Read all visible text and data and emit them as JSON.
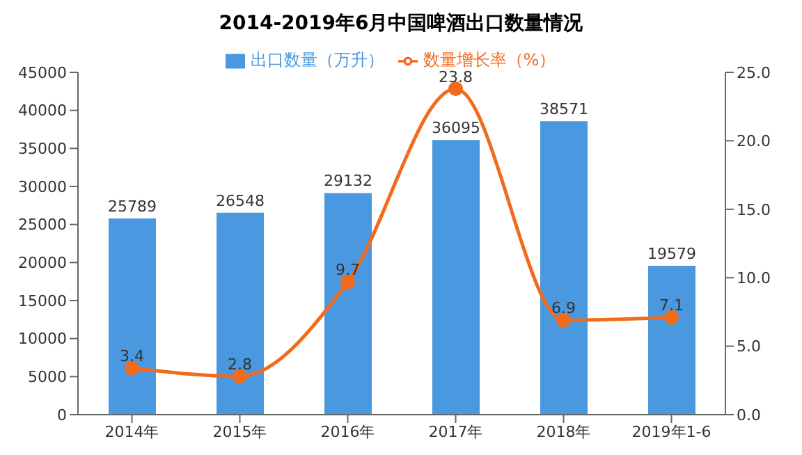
{
  "chart_data": {
    "type": "bar",
    "title": "2014-2019年6月中国啤酒出口数量情况",
    "categories": [
      "2014年",
      "2015年",
      "2016年",
      "2017年",
      "2018年",
      "2019年1-6"
    ],
    "series": [
      {
        "name": "出口数量（万升）",
        "color": "#4a98e0",
        "values": [
          25789,
          26548,
          29132,
          36095,
          38571,
          19579
        ]
      },
      {
        "name": "数量增长率（%）",
        "type": "line",
        "axis": "y2",
        "color": "#f26b1d",
        "values": [
          3.4,
          2.8,
          9.7,
          23.8,
          6.9,
          7.1
        ]
      }
    ],
    "ylim": [
      0,
      45000
    ],
    "yticks": [
      0,
      5000,
      10000,
      15000,
      20000,
      25000,
      30000,
      35000,
      40000,
      45000
    ],
    "y2lim": [
      0,
      25
    ],
    "y2ticks": [
      {
        "value": 0,
        "label": "0.0"
      },
      {
        "value": 5,
        "label": "5.0"
      },
      {
        "value": 10,
        "label": "10.0"
      },
      {
        "value": 15,
        "label": "15.0"
      },
      {
        "value": 20,
        "label": "20.0"
      },
      {
        "value": 25,
        "label": "25.0"
      }
    ],
    "data_labels": true,
    "legend": "top",
    "grid": false,
    "marker": "circle"
  }
}
